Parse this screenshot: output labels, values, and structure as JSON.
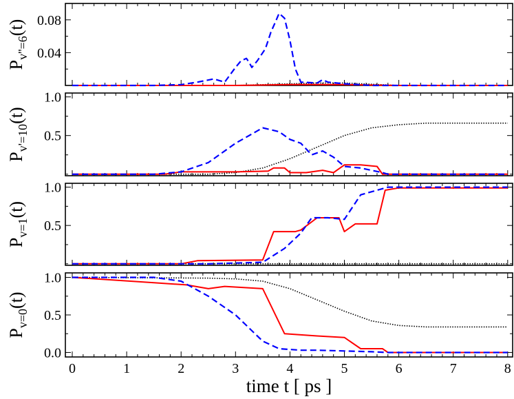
{
  "figure": {
    "xlabel": "time t [ ps ]",
    "x_ticks": [
      "0",
      "1",
      "2",
      "3",
      "4",
      "5",
      "6",
      "7",
      "8"
    ],
    "colors": {
      "dotted": "#000000",
      "solid": "#ff0000",
      "dashed": "#0000ff",
      "frame": "#000000"
    }
  },
  "chart_data": [
    {
      "type": "line",
      "panel": "P_v''=6",
      "ylabel_main": "P",
      "ylabel_sub": "v''=6",
      "ylabel_tail": "(t)",
      "y_ticks": [
        "0.04",
        "0.08"
      ],
      "y_tick_values": [
        0.04,
        0.08
      ],
      "ylim": [
        0.0,
        0.1
      ],
      "xlim": [
        0,
        8
      ],
      "series": [
        {
          "name": "dotted",
          "style": "dotted",
          "x": [
            0,
            2.5,
            3,
            3.5,
            4,
            4.5,
            5,
            6,
            7,
            8
          ],
          "y": [
            0,
            0,
            0,
            0.001,
            0.002,
            0.003,
            0.003,
            0,
            0,
            0
          ]
        },
        {
          "name": "solid",
          "style": "solid",
          "x": [
            0,
            3,
            4,
            5,
            6,
            8
          ],
          "y": [
            0,
            0,
            0.001,
            0.001,
            0,
            0
          ]
        },
        {
          "name": "dashed",
          "style": "dashed",
          "x": [
            0,
            1.5,
            2,
            2.3,
            2.6,
            2.8,
            3.0,
            3.1,
            3.2,
            3.25,
            3.3,
            3.4,
            3.55,
            3.65,
            3.75,
            3.8,
            3.9,
            4.0,
            4.1,
            4.2,
            4.5,
            4.6,
            4.7,
            5.0,
            5.5,
            8
          ],
          "y": [
            0,
            0,
            0.001,
            0.004,
            0.008,
            0.004,
            0.022,
            0.03,
            0.033,
            0.028,
            0.022,
            0.03,
            0.045,
            0.065,
            0.08,
            0.088,
            0.082,
            0.055,
            0.02,
            0.004,
            0.003,
            0.007,
            0.004,
            0.002,
            0,
            0
          ]
        }
      ]
    },
    {
      "type": "line",
      "panel": "P_v'=10",
      "ylabel_main": "P",
      "ylabel_sub": "v'=10",
      "ylabel_tail": "(t)",
      "y_ticks": [
        "0.5",
        "1.0"
      ],
      "y_tick_values": [
        0.5,
        1.0
      ],
      "ylim": [
        -0.02,
        1.05
      ],
      "xlim": [
        0,
        8
      ],
      "series": [
        {
          "name": "dotted",
          "style": "dotted",
          "x": [
            0,
            2.5,
            3,
            3.5,
            4,
            4.5,
            5,
            5.5,
            6,
            6.5,
            7,
            8
          ],
          "y": [
            0,
            0,
            0.02,
            0.08,
            0.2,
            0.35,
            0.5,
            0.6,
            0.64,
            0.66,
            0.66,
            0.66
          ]
        },
        {
          "name": "solid",
          "style": "solid",
          "x": [
            0,
            1.7,
            2.0,
            3.0,
            3.6,
            3.7,
            3.9,
            4.0,
            4.3,
            4.6,
            4.8,
            5.0,
            5.3,
            5.6,
            5.7,
            8
          ],
          "y": [
            0,
            0,
            0.03,
            0.03,
            0.04,
            0.08,
            0.08,
            0.02,
            0.02,
            0.05,
            0.02,
            0.12,
            0.12,
            0.1,
            0,
            0
          ]
        },
        {
          "name": "dashed",
          "style": "dashed",
          "x": [
            0,
            1.5,
            2,
            2.5,
            3,
            3.5,
            3.8,
            4.0,
            4.2,
            4.4,
            4.6,
            4.8,
            5.0,
            5.3,
            5.7,
            5.8,
            8
          ],
          "y": [
            0,
            0,
            0.03,
            0.15,
            0.4,
            0.6,
            0.55,
            0.45,
            0.4,
            0.25,
            0.3,
            0.22,
            0.1,
            0.08,
            0.02,
            0,
            0
          ]
        }
      ]
    },
    {
      "type": "line",
      "panel": "P_v=1",
      "ylabel_main": "P",
      "ylabel_sub": "v=1",
      "ylabel_tail": "(t)",
      "y_ticks": [
        "0.5",
        "1.0"
      ],
      "y_tick_values": [
        0.5,
        1.0
      ],
      "ylim": [
        -0.02,
        1.05
      ],
      "xlim": [
        0,
        8
      ],
      "series": [
        {
          "name": "dotted",
          "style": "dotted",
          "x": [
            0,
            8
          ],
          "y": [
            0,
            0
          ]
        },
        {
          "name": "solid",
          "style": "solid",
          "x": [
            0,
            2,
            2.3,
            3.5,
            3.7,
            4.1,
            4.2,
            4.5,
            4.9,
            5.0,
            5.2,
            5.6,
            5.75,
            6,
            8
          ],
          "y": [
            0,
            0,
            0.04,
            0.05,
            0.42,
            0.42,
            0.44,
            0.6,
            0.6,
            0.42,
            0.52,
            0.52,
            0.96,
            0.99,
            0.99
          ]
        },
        {
          "name": "dashed",
          "style": "dashed",
          "x": [
            0,
            2.5,
            3.5,
            3.9,
            4.2,
            4.4,
            4.7,
            5.0,
            5.3,
            5.6,
            5.8,
            6,
            8
          ],
          "y": [
            0,
            0,
            0.02,
            0.2,
            0.4,
            0.6,
            0.6,
            0.58,
            0.9,
            0.96,
            1.0,
            1.0,
            1.0
          ]
        }
      ]
    },
    {
      "type": "line",
      "panel": "P_v=0",
      "ylabel_main": "P",
      "ylabel_sub": "v=0",
      "ylabel_tail": "(t)",
      "y_ticks": [
        "0.0",
        "0.5",
        "1.0"
      ],
      "y_tick_values": [
        0.0,
        0.5,
        1.0
      ],
      "ylim": [
        -0.06,
        1.06
      ],
      "xlim": [
        0,
        8
      ],
      "series": [
        {
          "name": "dotted",
          "style": "dotted",
          "x": [
            0,
            2.5,
            3,
            3.5,
            4,
            4.5,
            5,
            5.5,
            6,
            6.5,
            7,
            8
          ],
          "y": [
            1,
            0.99,
            0.98,
            0.95,
            0.85,
            0.7,
            0.55,
            0.42,
            0.36,
            0.34,
            0.34,
            0.34
          ]
        },
        {
          "name": "solid",
          "style": "solid",
          "x": [
            0,
            1.5,
            2.1,
            2.5,
            2.8,
            3.5,
            3.9,
            4.5,
            5.0,
            5.3,
            5.7,
            5.8,
            8
          ],
          "y": [
            1,
            0.93,
            0.9,
            0.85,
            0.88,
            0.85,
            0.25,
            0.22,
            0.2,
            0.05,
            0.05,
            0,
            0
          ]
        },
        {
          "name": "dashed",
          "style": "dashed",
          "x": [
            0,
            1.5,
            2.0,
            2.5,
            3.0,
            3.5,
            3.8,
            4.2,
            4.5,
            5.0,
            5.5,
            5.8,
            8
          ],
          "y": [
            1,
            1,
            0.95,
            0.75,
            0.5,
            0.15,
            0.05,
            0.03,
            0.03,
            0.02,
            0.01,
            0,
            0
          ]
        }
      ]
    }
  ]
}
